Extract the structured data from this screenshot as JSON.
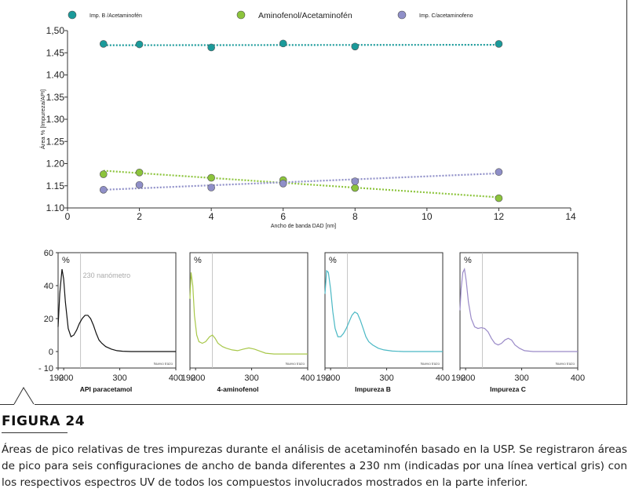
{
  "figure": {
    "label": "FIGURA 24",
    "caption": "Áreas de pico relativas de tres impurezas durante el análisis de acetaminofén basado en la USP. Se registraron áreas de pico para seis configuraciones de ancho de banda diferentes a 230 nm (indicadas por una línea vertical gris) con los respectivos espectros UV de todos los compuestos involucrados mostrados en la parte inferior."
  },
  "colors": {
    "teal": "#1a9a9a",
    "green": "#8cc43c",
    "purple": "#8f8fc8",
    "uv_black": "#111111",
    "uv_green": "#a8c84a",
    "uv_teal": "#4ab8c4",
    "uv_purple": "#9a8ac8",
    "gray_line": "#c4c4c4"
  },
  "chart_data": [
    {
      "type": "scatter",
      "xlabel": "Ancho de banda DAD [nm]",
      "ylabel": "Área % [Impureza/API]",
      "xlim": [
        0,
        14
      ],
      "ylim": [
        1.1,
        1.5
      ],
      "xticks": [
        "0",
        "2",
        "4",
        "6",
        "8",
        "10",
        "12",
        "14"
      ],
      "yticks": [
        "1.10",
        "1.15",
        "1.20",
        "1.25",
        "1.30",
        "1.35",
        "1.40",
        "1.45",
        "1,50"
      ],
      "legend_position": "top",
      "trendlines": "dotted linear",
      "x": [
        1,
        2,
        4,
        6,
        8,
        12
      ],
      "series": [
        {
          "name": "Imp. B /Acetaminofén",
          "values": [
            1.47,
            1.469,
            1.462,
            1.471,
            1.464,
            1.47
          ],
          "trend": [
            1.467,
            1.468
          ]
        },
        {
          "name": "Aminofenol/Acetaminofén",
          "values": [
            1.176,
            1.18,
            1.168,
            1.163,
            1.145,
            1.122
          ],
          "trend": [
            1.184,
            1.124
          ]
        },
        {
          "name": "Imp. C/acetaminofeno",
          "values": [
            1.141,
            1.152,
            1.146,
            1.155,
            1.16,
            1.181
          ],
          "trend": [
            1.141,
            1.178
          ]
        }
      ]
    },
    {
      "type": "line",
      "panels": [
        {
          "title": "API paracetamol",
          "unit_label": "%",
          "note": "230 nanómetro",
          "corner_label": "Nuevo trazo",
          "xlim": [
            190,
            400
          ],
          "ylim": [
            -10,
            60
          ],
          "xticks": [
            "190",
            "200",
            "300",
            "400"
          ],
          "yticks": [
            "60",
            "40",
            "20",
            "0",
            "- 10"
          ],
          "marker_x": 230,
          "x": [
            190,
            193,
            197,
            200,
            203,
            208,
            213,
            218,
            223,
            228,
            233,
            238,
            243,
            248,
            253,
            258,
            263,
            268,
            275,
            285,
            295,
            305,
            320,
            340,
            360,
            380,
            400
          ],
          "y": [
            15,
            35,
            50,
            44,
            30,
            14,
            9,
            10,
            13,
            17,
            20,
            22,
            22,
            20,
            16,
            11,
            7,
            5,
            3,
            1.5,
            0.5,
            0.2,
            0,
            0,
            0,
            0,
            0
          ]
        },
        {
          "title": "4-aminofenol",
          "unit_label": "%",
          "corner_label": "Nuevo trazo",
          "xlim": [
            190,
            400
          ],
          "ylim": [
            -10,
            60
          ],
          "xticks": [
            "190",
            "200",
            "300",
            "400"
          ],
          "marker_x": 230,
          "x": [
            190,
            192,
            195,
            198,
            202,
            206,
            212,
            218,
            225,
            230,
            235,
            240,
            248,
            255,
            265,
            275,
            285,
            295,
            305,
            315,
            325,
            340,
            360,
            380,
            400
          ],
          "y": [
            32,
            48,
            40,
            22,
            10,
            6,
            5,
            6,
            9,
            10,
            8,
            5,
            3,
            2,
            1,
            0.5,
            1.5,
            2.2,
            1.5,
            0.2,
            -1,
            -1.5,
            -1.5,
            -1.5,
            -1.5
          ]
        },
        {
          "title": "Impureza B",
          "unit_label": "%",
          "corner_label": "Nuevo trazo",
          "xlim": [
            190,
            400
          ],
          "ylim": [
            -10,
            60
          ],
          "xticks": [
            "190",
            "200",
            "300",
            "400"
          ],
          "marker_x": 230,
          "x": [
            190,
            193,
            196,
            200,
            204,
            208,
            213,
            218,
            223,
            228,
            233,
            238,
            243,
            248,
            253,
            258,
            263,
            268,
            275,
            285,
            295,
            310,
            330,
            360,
            400
          ],
          "y": [
            35,
            49,
            48,
            38,
            24,
            14,
            9,
            9,
            11,
            14,
            18,
            22,
            24,
            23,
            19,
            14,
            9,
            6,
            4,
            2,
            1,
            0.3,
            0,
            0,
            0
          ]
        },
        {
          "title": "Impureza C",
          "unit_label": "%",
          "corner_label": "Nuevo trazo",
          "xlim": [
            190,
            400
          ],
          "ylim": [
            -10,
            60
          ],
          "xticks": [
            "190",
            "200",
            "300",
            "400"
          ],
          "marker_x": 230,
          "x": [
            190,
            192,
            195,
            198,
            201,
            205,
            210,
            216,
            222,
            228,
            234,
            240,
            246,
            252,
            258,
            264,
            270,
            276,
            282,
            288,
            296,
            305,
            320,
            340,
            360,
            400
          ],
          "y": [
            25,
            38,
            48,
            50,
            43,
            30,
            20,
            15,
            14,
            14.5,
            14,
            12,
            8,
            5,
            4,
            5,
            7,
            8,
            7,
            4,
            2,
            0.5,
            0,
            0,
            0,
            0
          ]
        }
      ]
    }
  ]
}
